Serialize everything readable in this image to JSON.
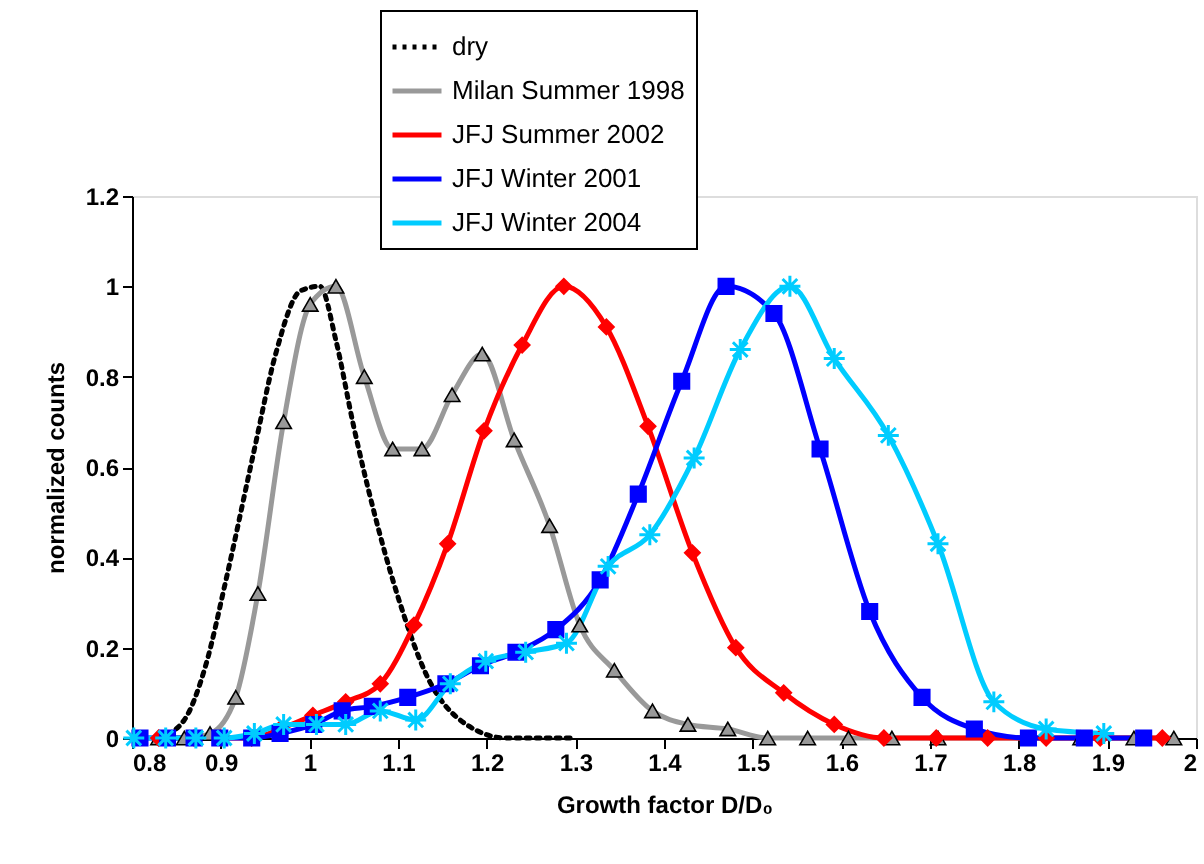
{
  "chart_data": {
    "type": "line",
    "xlabel": "Growth factor D/D₀",
    "ylabel": "normalized counts",
    "xlim": [
      0.8,
      2
    ],
    "xticks": [
      0.8,
      0.9,
      1,
      1.1,
      1.2,
      1.3,
      1.4,
      1.5,
      1.6,
      1.7,
      1.8,
      1.9,
      2
    ],
    "ylim": [
      0,
      1.2
    ],
    "yticks": [
      0,
      0.2,
      0.4,
      0.6,
      0.8,
      1,
      1.2
    ],
    "grid": false,
    "legend": "top",
    "series": [
      {
        "name": "dry",
        "color": "#000000",
        "marker": "none",
        "line_style": "dotted",
        "x": [
          0.83,
          0.859,
          0.883,
          0.906,
          0.937,
          0.962,
          0.99,
          1.012,
          1.03,
          1.05,
          1.073,
          1.102,
          1.132,
          1.177,
          1.222,
          1.3
        ],
        "values": [
          0,
          0.04,
          0.16,
          0.35,
          0.63,
          0.85,
          0.99,
          1.0,
          0.88,
          0.69,
          0.5,
          0.3,
          0.14,
          0.03,
          0,
          0
        ]
      },
      {
        "name": "Milan Summer 1998",
        "color": "#999999",
        "marker": "triangle",
        "line_style": "solid",
        "x": [
          0.83,
          0.859,
          0.888,
          0.917,
          0.942,
          0.971,
          1.001,
          1.03,
          1.062,
          1.094,
          1.127,
          1.161,
          1.195,
          1.231,
          1.271,
          1.305,
          1.344,
          1.387,
          1.427,
          1.472,
          1.517,
          1.562,
          1.608,
          1.657,
          1.709,
          1.87,
          1.93,
          1.975
        ],
        "values": [
          0,
          0,
          0.01,
          0.09,
          0.32,
          0.7,
          0.96,
          1.0,
          0.8,
          0.64,
          0.64,
          0.76,
          0.85,
          0.66,
          0.47,
          0.25,
          0.15,
          0.06,
          0.03,
          0.02,
          0,
          0,
          0,
          0,
          0,
          0,
          0,
          0
        ]
      },
      {
        "name": "JFJ Summer 2002",
        "color": "#ff0000",
        "marker": "diamond",
        "line_style": "solid",
        "x": [
          0.83,
          0.87,
          0.9,
          0.935,
          0.967,
          1.004,
          1.041,
          1.08,
          1.118,
          1.156,
          1.197,
          1.24,
          1.287,
          1.335,
          1.382,
          1.432,
          1.481,
          1.535,
          1.592,
          1.648,
          1.707,
          1.765,
          1.831,
          1.892,
          1.962
        ],
        "values": [
          0,
          0,
          0,
          0,
          0.02,
          0.05,
          0.08,
          0.12,
          0.25,
          0.43,
          0.68,
          0.87,
          1.0,
          0.91,
          0.69,
          0.41,
          0.2,
          0.1,
          0.03,
          0,
          0,
          0,
          0,
          0,
          0
        ]
      },
      {
        "name": "JFJ Winter 2001",
        "color": "#0000ff",
        "marker": "square",
        "line_style": "solid",
        "x": [
          0.809,
          0.84,
          0.87,
          0.899,
          0.935,
          0.967,
          1.005,
          1.037,
          1.071,
          1.111,
          1.154,
          1.193,
          1.233,
          1.278,
          1.328,
          1.371,
          1.42,
          1.47,
          1.524,
          1.576,
          1.632,
          1.691,
          1.75,
          1.811,
          1.874,
          1.941
        ],
        "values": [
          0,
          0,
          0,
          0,
          0,
          0.01,
          0.03,
          0.06,
          0.07,
          0.09,
          0.12,
          0.16,
          0.19,
          0.24,
          0.35,
          0.54,
          0.79,
          1.0,
          0.94,
          0.64,
          0.28,
          0.09,
          0.02,
          0,
          0,
          0
        ]
      },
      {
        "name": "JFJ Winter 2004",
        "color": "#00ccff",
        "marker": "cross",
        "line_style": "solid",
        "x": [
          0.802,
          0.838,
          0.872,
          0.904,
          0.938,
          0.971,
          1.008,
          1.041,
          1.08,
          1.12,
          1.159,
          1.199,
          1.244,
          1.29,
          1.337,
          1.384,
          1.434,
          1.486,
          1.542,
          1.592,
          1.653,
          1.709,
          1.772,
          1.831,
          1.896
        ],
        "values": [
          0,
          0,
          0,
          0,
          0.01,
          0.03,
          0.03,
          0.03,
          0.06,
          0.04,
          0.12,
          0.17,
          0.19,
          0.21,
          0.38,
          0.45,
          0.62,
          0.86,
          1.0,
          0.84,
          0.67,
          0.43,
          0.08,
          0.02,
          0.01
        ]
      }
    ]
  }
}
